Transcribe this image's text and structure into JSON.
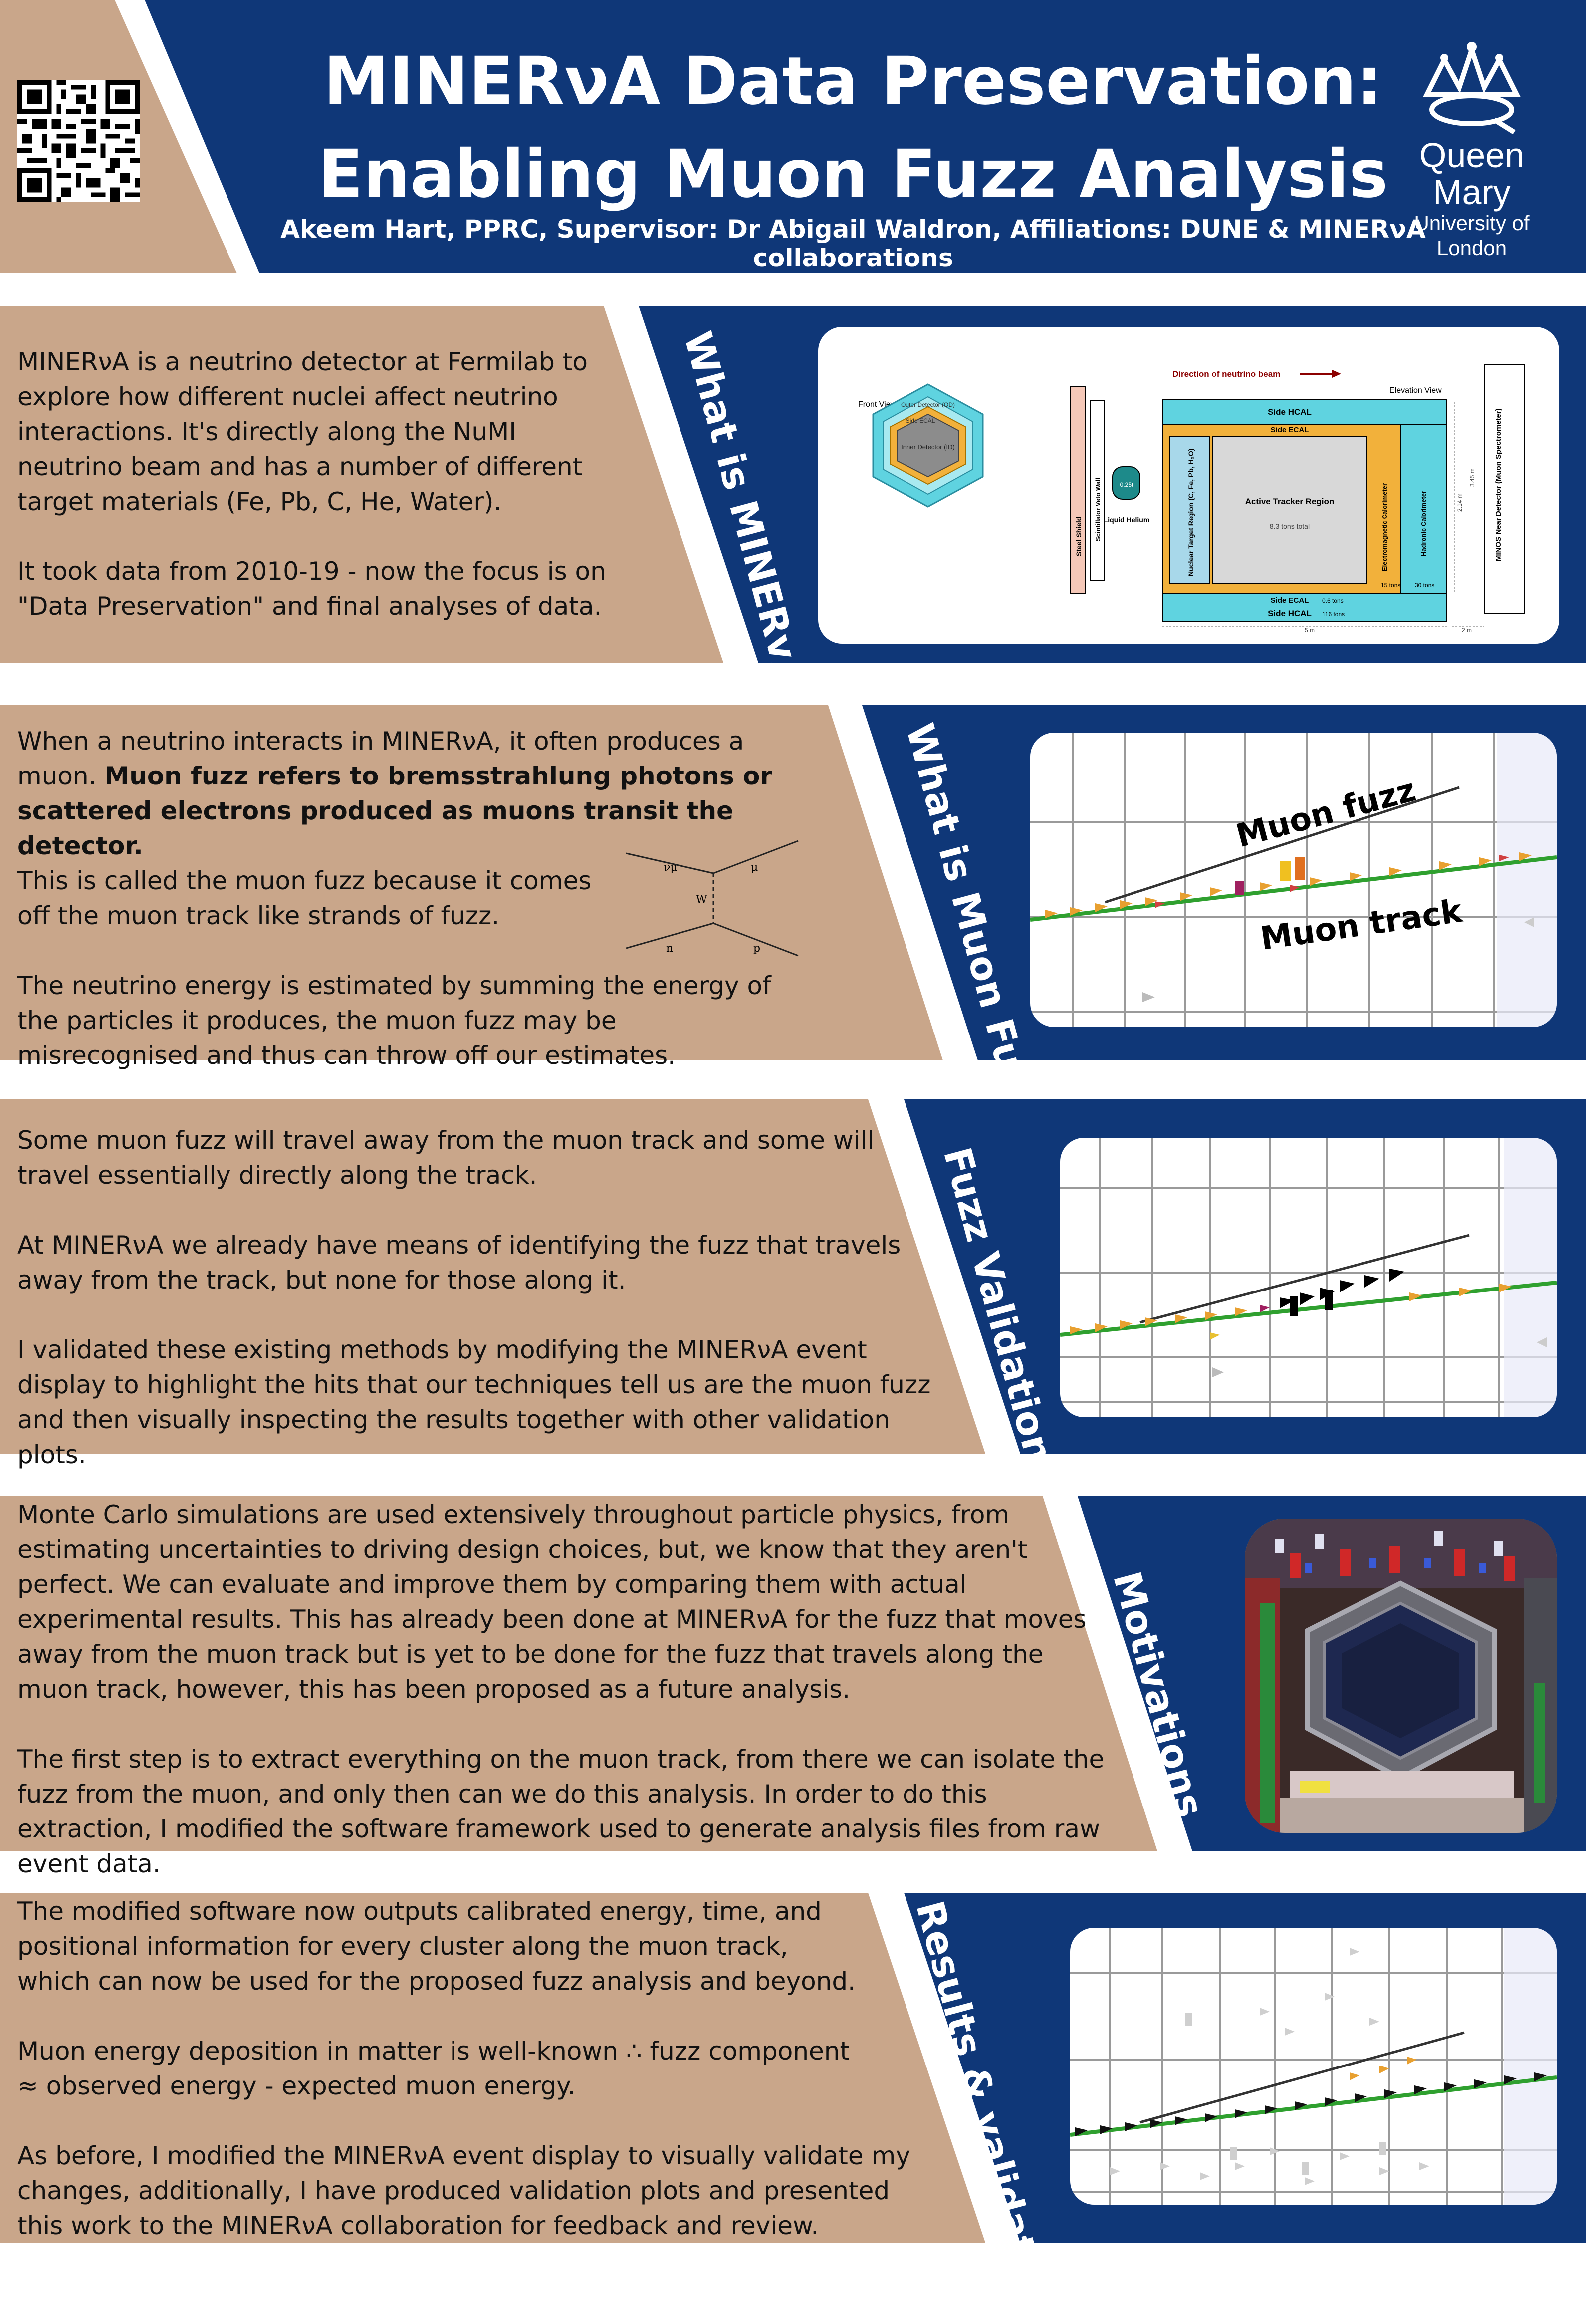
{
  "header": {
    "title_line1": "MINERνA Data Preservation:",
    "title_line2": "Enabling Muon Fuzz Analysis",
    "subtitle": "Akeem Hart, PPRC, Supervisor: Dr Abigail Waldron, Affiliations: DUNE & MINERνA collaborations",
    "logo_line1": "Queen Mary",
    "logo_line2": "University of London"
  },
  "sections": {
    "what_minerva": {
      "heading": "What is MINERvA?",
      "p1": "MINERνA is a neutrino detector at Fermilab to explore how different nuclei affect neutrino interactions. It's directly along the NuMI neutrino beam and has a number of different target materials (Fe, Pb, C, He, Water).",
      "p2": "It took data from 2010-19 - now the focus is on \"Data Preservation\" and final analyses of data.",
      "diagram": {
        "front_view": "Front View",
        "outer_detector": "Outer Detector (OD)",
        "side_ecal_hex": "Side ECAL",
        "inner_detector": "Inner Detector (ID)",
        "beam": "Direction of neutrino beam",
        "elevation": "Elevation View",
        "steel_shield": "Steel Shield",
        "veto_wall": "Scintillator Veto Wall",
        "liquid_helium": "Liquid Helium",
        "helium_mass": "0.25t",
        "side_hcal_top": "Side HCAL",
        "side_ecal_top": "Side ECAL",
        "nuclear_target": "Nuclear Target Region (C, Fe, Pb, H₂O)",
        "active_tracker": "Active Tracker Region",
        "tracker_mass": "8.3 tons total",
        "em_cal": "Electromagnetic Calorimeter",
        "em_mass": "15 tons",
        "had_cal": "Hadronic Calorimeter",
        "had_mass": "30 tons",
        "side_ecal_bottom": "Side ECAL",
        "ecal_mass": "0.6 tons",
        "side_hcal_bottom": "Side HCAL",
        "hcal_mass": "116 tons",
        "len_5m": "5 m",
        "len_2m": "2 m",
        "height_1": "2.14 m",
        "height_2": "3.45 m",
        "minos": "MINOS Near Detector (Muon Spectrometer)"
      }
    },
    "muon_fuzz": {
      "heading": "What is Muon Fuzz?",
      "p1_a": "When a neutrino interacts in MINERνA, it often produces a muon. ",
      "p1_bold": "Muon fuzz refers to bremsstrahlung photons or scattered electrons produced as muons transit the detector.",
      "p1_c": "This is called the muon fuzz because it comes off the muon track like strands of fuzz.",
      "p2": "The neutrino energy is estimated by summing the energy of the particles it produces, the muon fuzz may be misrecognised and thus can throw off our estimates.",
      "feynman": {
        "nu": "νμ",
        "mu": "μ",
        "w": "W",
        "n": "n",
        "p": "p"
      },
      "label_fuzz": "Muon fuzz",
      "label_track": "Muon track"
    },
    "validation": {
      "heading": "Fuzz Validation",
      "p1": "Some muon fuzz will travel away from the muon track and some will travel essentially directly along the track.",
      "p2": "At MINERνA we already have means of identifying the fuzz that travels away from the track, but none for those along it.",
      "p3": "I validated these existing methods by modifying the MINERνA event display to highlight the hits that our techniques tell us are the muon fuzz and then visually inspecting the results together with other validation plots."
    },
    "motivations": {
      "heading": "Motivations",
      "p1": "Monte Carlo simulations are used extensively throughout particle physics, from estimating uncertainties to driving design choices, but, we know that they aren't perfect. We can evaluate and improve them by comparing them with actual experimental results. This has already been done at MINERνA for the fuzz that moves away from the muon track but is yet to be done for the fuzz that travels along the muon track, however, this has been proposed as a future analysis.",
      "p2": "The first step is to extract everything on the muon track, from there we can isolate the fuzz from the muon, and only then can we do this analysis. In order to do this extraction, I modified the software framework used to generate analysis files from raw event data."
    },
    "results": {
      "heading": "Results & validation",
      "p1": "The modified software now outputs calibrated energy, time, and positional information for every cluster along the muon track, which can now be used for the proposed fuzz analysis and beyond.",
      "p2": "Muon energy deposition in matter is well-known ∴ fuzz component ≈ observed energy - expected muon energy.",
      "p3": "As before, I modified the MINERνA event display to visually validate my changes, additionally, I have produced validation plots and presented this work to the MINERνA collaboration for feedback and review."
    }
  }
}
